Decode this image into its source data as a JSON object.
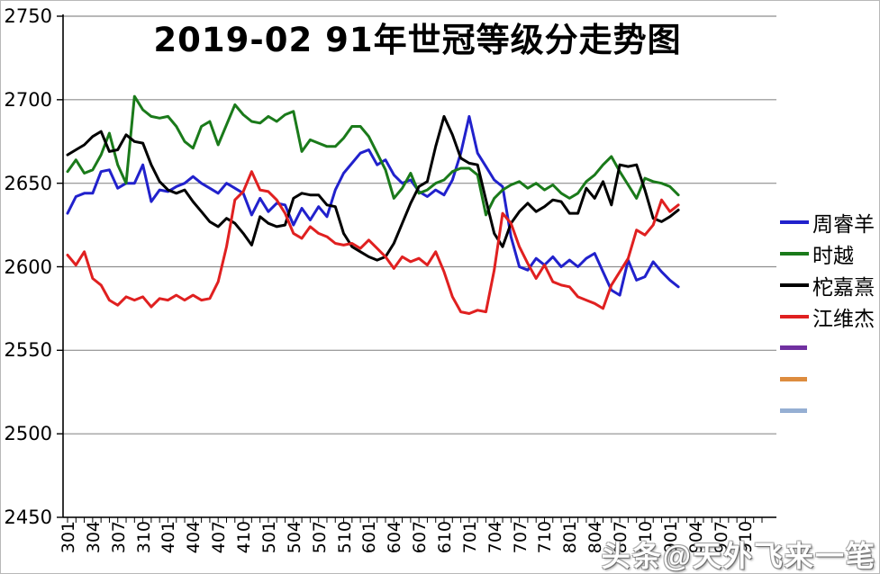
{
  "title": "2019-02 91年世冠等级分走势图",
  "watermark": "头条@天外飞来一笔",
  "chart_data": {
    "type": "line",
    "title": "2019-02 91年世冠等级分走势图",
    "ylabel": "",
    "xlabel": "",
    "ylim": [
      2450,
      2750
    ],
    "y_tick_step": 50,
    "y_ticks": [
      2450,
      2500,
      2550,
      2600,
      2650,
      2700,
      2750
    ],
    "grid": "horizontal",
    "grid_color": "#8e8e8e",
    "axis_color": "#000000",
    "legend_position": "right",
    "x_tick_count": 84,
    "x_label_every_n_ticks": 3,
    "x_labels": [
      "301",
      "304",
      "307",
      "310",
      "401",
      "404",
      "407",
      "410",
      "501",
      "504",
      "507",
      "510",
      "601",
      "604",
      "607",
      "610",
      "701",
      "704",
      "707",
      "710",
      "801",
      "804",
      "807",
      "810",
      "901",
      "904",
      "907",
      "910"
    ],
    "series": [
      {
        "name": "周睿羊",
        "color": "#2121CC",
        "values": [
          2632,
          2642,
          2644,
          2644,
          2657,
          2658,
          2647,
          2650,
          2650,
          2661,
          2639,
          2646,
          2645,
          2648,
          2650,
          2654,
          2650,
          2647,
          2644,
          2650,
          2647,
          2644,
          2631,
          2641,
          2633,
          2638,
          2637,
          2625,
          2635,
          2628,
          2636,
          2630,
          2646,
          2656,
          2662,
          2668,
          2670,
          2661,
          2664,
          2655,
          2650,
          2652,
          2645,
          2642,
          2646,
          2643,
          2652,
          2668,
          2690,
          2668,
          2660,
          2652,
          2648,
          2618,
          2600,
          2598,
          2605,
          2601,
          2606,
          2600,
          2604,
          2600,
          2605,
          2608,
          2597,
          2586,
          2583,
          2604,
          2592,
          2594,
          2603,
          2597,
          2592,
          2588
        ]
      },
      {
        "name": "时越",
        "color": "#1A7A1A",
        "values": [
          2657,
          2664,
          2656,
          2658,
          2667,
          2680,
          2661,
          2650,
          2702,
          2694,
          2690,
          2689,
          2690,
          2684,
          2675,
          2671,
          2684,
          2687,
          2673,
          2685,
          2697,
          2691,
          2687,
          2686,
          2690,
          2687,
          2691,
          2693,
          2669,
          2676,
          2674,
          2672,
          2672,
          2677,
          2684,
          2684,
          2678,
          2668,
          2658,
          2641,
          2647,
          2656,
          2644,
          2646,
          2650,
          2652,
          2657,
          2659,
          2659,
          2655,
          2631,
          2641,
          2646,
          2649,
          2651,
          2647,
          2650,
          2646,
          2649,
          2644,
          2641,
          2644,
          2651,
          2655,
          2661,
          2666,
          2657,
          2649,
          2641,
          2653,
          2651,
          2650,
          2648,
          2643
        ]
      },
      {
        "name": "柁嘉熹",
        "color": "#000000",
        "values": [
          2667,
          2670,
          2673,
          2678,
          2681,
          2669,
          2670,
          2679,
          2675,
          2674,
          2661,
          2651,
          2646,
          2644,
          2646,
          2639,
          2633,
          2627,
          2624,
          2629,
          2626,
          2620,
          2613,
          2630,
          2626,
          2624,
          2625,
          2641,
          2644,
          2643,
          2643,
          2637,
          2636,
          2620,
          2612,
          2609,
          2606,
          2604,
          2606,
          2614,
          2626,
          2638,
          2648,
          2651,
          2672,
          2690,
          2679,
          2665,
          2662,
          2661,
          2640,
          2620,
          2612,
          2626,
          2633,
          2638,
          2633,
          2636,
          2640,
          2639,
          2632,
          2632,
          2647,
          2641,
          2651,
          2637,
          2661,
          2660,
          2661,
          2646,
          2629,
          2627,
          2630,
          2634
        ]
      },
      {
        "name": "江维杰",
        "color": "#E02020",
        "values": [
          2607,
          2601,
          2609,
          2593,
          2589,
          2580,
          2577,
          2582,
          2580,
          2582,
          2576,
          2581,
          2580,
          2583,
          2580,
          2583,
          2580,
          2581,
          2591,
          2612,
          2640,
          2645,
          2657,
          2646,
          2645,
          2640,
          2632,
          2620,
          2617,
          2624,
          2620,
          2618,
          2614,
          2613,
          2614,
          2611,
          2616,
          2611,
          2606,
          2599,
          2606,
          2603,
          2605,
          2601,
          2609,
          2597,
          2582,
          2573,
          2572,
          2574,
          2573,
          2598,
          2632,
          2626,
          2612,
          2602,
          2593,
          2601,
          2591,
          2589,
          2588,
          2582,
          2580,
          2578,
          2575,
          2589,
          2597,
          2605,
          2622,
          2619,
          2625,
          2640,
          2633,
          2637
        ]
      },
      {
        "name": "",
        "color": "#7030A0",
        "values": []
      },
      {
        "name": "",
        "color": "#DD8C3E",
        "values": []
      },
      {
        "name": "",
        "color": "#95AFD3",
        "values": []
      }
    ]
  }
}
